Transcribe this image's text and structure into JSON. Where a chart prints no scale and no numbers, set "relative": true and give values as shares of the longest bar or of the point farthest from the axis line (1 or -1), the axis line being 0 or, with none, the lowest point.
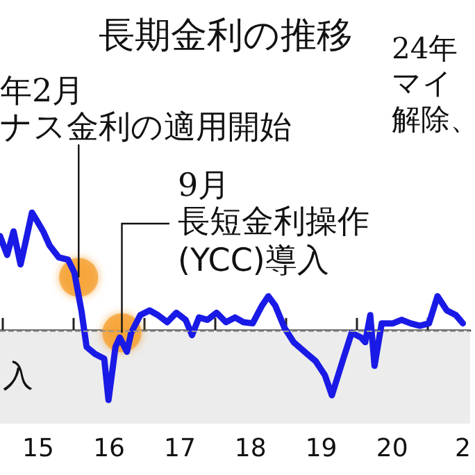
{
  "chart_data": {
    "type": "line",
    "title": "長期金利の推移",
    "relative": true,
    "tick_labels": "x",
    "grid": false,
    "marker": "none",
    "line_style": "solid",
    "x": [
      "2014-12-17",
      "2015-01-23",
      "2015-02-25",
      "2015-04-02",
      "2015-04-24",
      "2015-05-31",
      "2015-06-22",
      "2015-07-28",
      "2015-08-30",
      "2015-10-16",
      "2015-12-03",
      "2016-01-05",
      "2016-02-10",
      "2016-03-08",
      "2016-04-21",
      "2016-06-07",
      "2016-06-29",
      "2016-08-04",
      "2016-08-26",
      "2016-10-02",
      "2016-10-24",
      "2016-12-10",
      "2017-01-27",
      "2017-03-11",
      "2017-04-28",
      "2017-06-14",
      "2017-08-01",
      "2017-09-03",
      "2017-10-09",
      "2017-11-22",
      "2018-01-08",
      "2018-02-25",
      "2018-04-13",
      "2018-05-27",
      "2018-07-13",
      "2018-08-30",
      "2018-10-02",
      "2018-11-07",
      "2018-12-25",
      "2019-02-10",
      "2019-04-21",
      "2019-06-03",
      "2019-07-21",
      "2019-08-26",
      "2019-10-20",
      "2019-12-06",
      "2020-01-23",
      "2020-02-14",
      "2020-03-11",
      "2020-04-02",
      "2020-05-09",
      "2020-07-06",
      "2020-08-19",
      "2020-10-05",
      "2020-11-22",
      "2021-01-08",
      "2021-02-21",
      "2021-04-10",
      "2021-05-27",
      "2021-07-02"
    ],
    "series": [
      {
        "color": "#1a1ae6",
        "values": [
          0.8,
          0.64,
          0.84,
          0.56,
          0.72,
          1.0,
          0.94,
          0.84,
          0.72,
          0.62,
          0.6,
          0.49,
          0.17,
          -0.14,
          -0.2,
          -0.24,
          -0.59,
          -0.14,
          -0.06,
          -0.18,
          -0.02,
          0.13,
          0.17,
          0.13,
          0.07,
          0.15,
          0.09,
          -0.04,
          0.11,
          0.09,
          0.15,
          0.07,
          0.11,
          0.07,
          0.06,
          0.21,
          0.29,
          0.21,
          0.02,
          -0.1,
          -0.2,
          -0.26,
          -0.38,
          -0.55,
          -0.26,
          -0.02,
          -0.06,
          -0.1,
          0.13,
          -0.3,
          0.06,
          0.06,
          0.09,
          0.06,
          0.04,
          0.06,
          0.29,
          0.17,
          0.13,
          0.06
        ]
      }
    ],
    "xlim": [
      "2014-12-17",
      "2021-08-08"
    ],
    "xticks": [
      {
        "value": "2015-01-01",
        "label": null
      },
      {
        "value": "2015-07-02",
        "label": "15"
      },
      {
        "value": "2016-01-01",
        "label": null
      },
      {
        "value": "2016-07-02",
        "label": "16"
      },
      {
        "value": "2017-01-01",
        "label": null
      },
      {
        "value": "2017-07-02",
        "label": "17"
      },
      {
        "value": "2018-01-01",
        "label": null
      },
      {
        "value": "2018-07-02",
        "label": "18"
      },
      {
        "value": "2019-01-01",
        "label": null
      },
      {
        "value": "2019-07-02",
        "label": "19"
      },
      {
        "value": "2020-01-01",
        "label": null
      },
      {
        "value": "2020-07-02",
        "label": "20"
      },
      {
        "value": "2021-01-01",
        "label": null
      },
      {
        "value": "2021-07-02",
        "label": "2"
      }
    ],
    "ref_lines": [
      {
        "axis": "y",
        "value": 0,
        "color": "#999999",
        "line_style": "dashed"
      }
    ],
    "bands": [
      {
        "axis": "y",
        "from": -0.79,
        "to": 0,
        "color": "#ececec"
      }
    ],
    "annotations": [
      "年2月",
      {
        "text": "ナス金利の適用開始",
        "x": "2016-01-27",
        "y": 0.45
      },
      "9月",
      {
        "text": "長短金利操作(YCC)導入",
        "x": "2016-09-06",
        "y": -0.02
      },
      "24年",
      "マイ解除、",
      "入"
    ]
  }
}
